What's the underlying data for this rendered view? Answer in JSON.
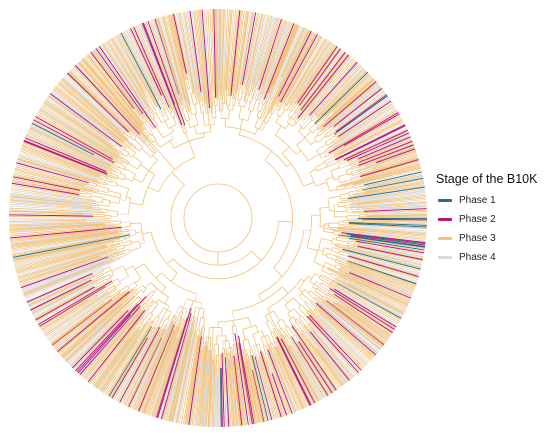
{
  "figure": {
    "type": "circular-phylogenetic-tree",
    "tip_count_estimate": 900,
    "branch_colors": {
      "phase1": "#2a6f84",
      "phase2": "#b5157e",
      "phase3": "#f3c176",
      "phase4": "#d9d9d9"
    }
  },
  "legend": {
    "title": "Stage of the B10K",
    "items": [
      {
        "label": "Phase 1",
        "color": "#2a6f84"
      },
      {
        "label": "Phase 2",
        "color": "#b5157e"
      },
      {
        "label": "Phase 3",
        "color": "#f3c176"
      },
      {
        "label": "Phase 4",
        "color": "#d9d9d9"
      }
    ]
  }
}
